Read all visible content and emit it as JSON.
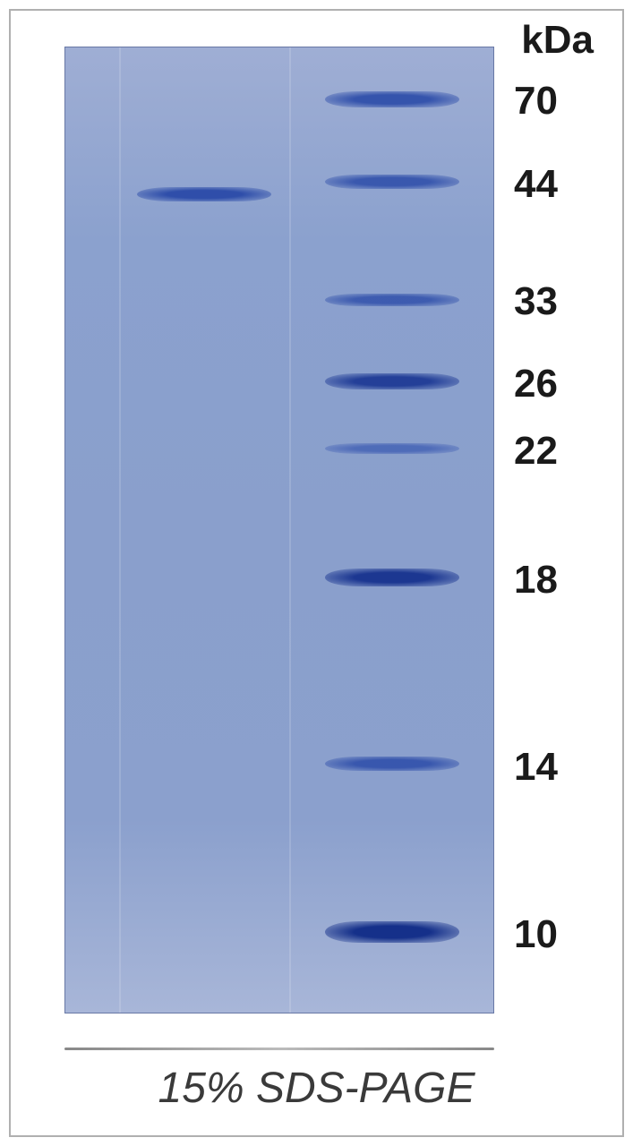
{
  "gel": {
    "caption": "15% SDS-PAGE",
    "caption_fontsize": 48,
    "unit": "kDa",
    "unit_fontsize": 44,
    "label_fontsize": 44,
    "background_gradient": [
      "#9faed4",
      "#8ba1ce",
      "#8a9fcc",
      "#8ba0cd",
      "#a8b6d8"
    ],
    "border_color": "#6878a5",
    "outer_border_color": "#b0b0b0",
    "sample_lane": {
      "bands": [
        {
          "position_pct": 14.5,
          "height": 16,
          "intensity": 0.95,
          "color": "#2a4aa8"
        }
      ]
    },
    "ladder_lane": {
      "bands": [
        {
          "label": "70",
          "position_pct": 4.5,
          "height": 18,
          "intensity": 0.9,
          "color": "#2a4aa8"
        },
        {
          "label": "44",
          "position_pct": 13.2,
          "height": 16,
          "intensity": 0.85,
          "color": "#2a4aa8"
        },
        {
          "label": "33",
          "position_pct": 25.5,
          "height": 14,
          "intensity": 0.8,
          "color": "#2a4aa8"
        },
        {
          "label": "26",
          "position_pct": 33.8,
          "height": 18,
          "intensity": 0.95,
          "color": "#1e3a95"
        },
        {
          "label": "22",
          "position_pct": 41.0,
          "height": 12,
          "intensity": 0.7,
          "color": "#3555b0"
        },
        {
          "label": "18",
          "position_pct": 54.0,
          "height": 20,
          "intensity": 0.98,
          "color": "#1a3590"
        },
        {
          "label": "14",
          "position_pct": 73.5,
          "height": 16,
          "intensity": 0.85,
          "color": "#2a4aa8"
        },
        {
          "label": "10",
          "position_pct": 90.5,
          "height": 24,
          "intensity": 1.0,
          "color": "#15308a"
        }
      ]
    }
  }
}
